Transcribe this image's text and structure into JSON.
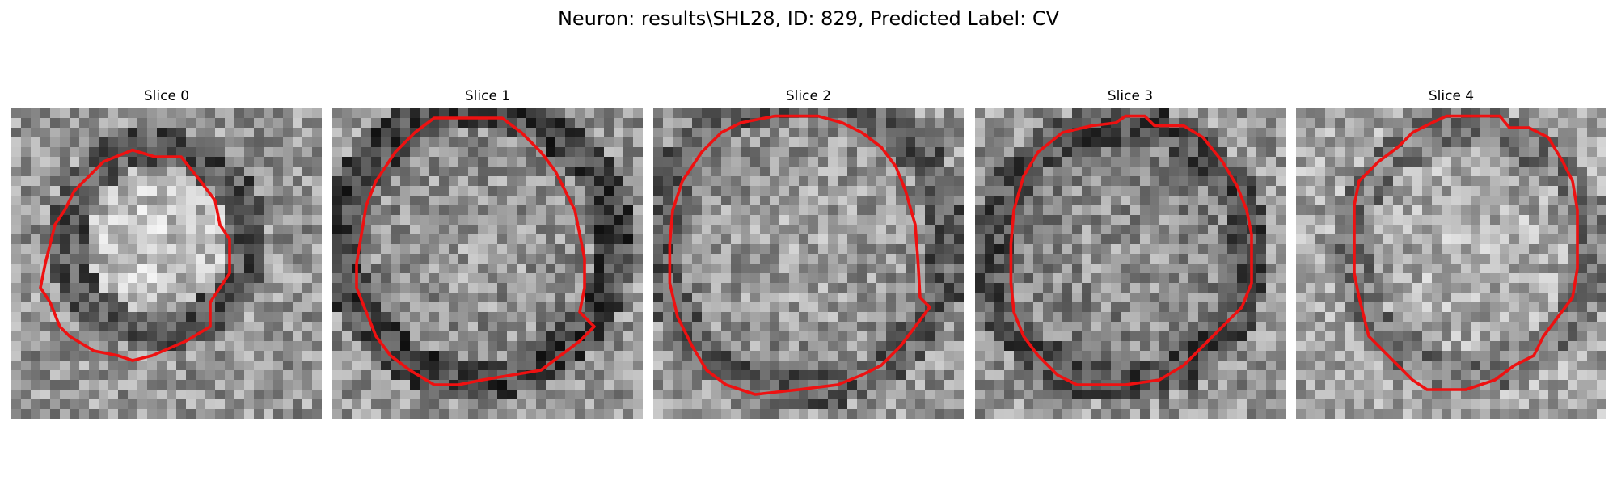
{
  "figure": {
    "title": "Neuron: results\\SHL28, ID: 829, Predicted Label: CV"
  },
  "contour_color": "#ee1111",
  "panels": [
    {
      "title": "Slice 0"
    },
    {
      "title": "Slice 1"
    },
    {
      "title": "Slice 2"
    },
    {
      "title": "Slice 3"
    },
    {
      "title": "Slice 4"
    }
  ]
}
